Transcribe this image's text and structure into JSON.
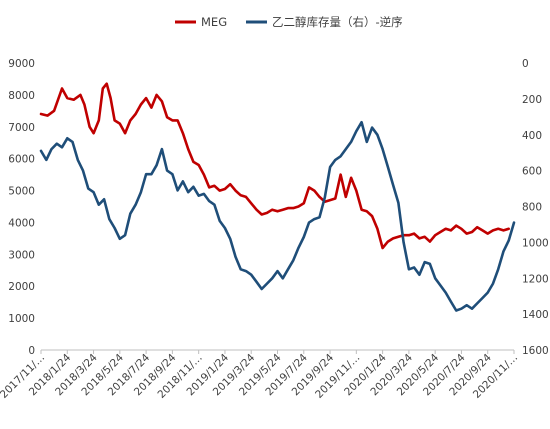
{
  "chart_data": {
    "type": "line",
    "title": "",
    "legend": {
      "placement": "top",
      "entries": [
        {
          "name": "MEG",
          "color": "#c00000"
        },
        {
          "name": "乙二醇库存量（右）-逆序",
          "color": "#1f4e79"
        }
      ]
    },
    "x_ticks": [
      "2017/11/…",
      "2018/1/24",
      "2018/3/24",
      "2018/5/24",
      "2018/7/24",
      "2018/9/24",
      "2018/11/…",
      "2019/1/24",
      "2019/3/24",
      "2019/5/24",
      "2019/7/24",
      "2019/9/24",
      "2019/11/…",
      "2020/1/24",
      "2020/3/24",
      "2020/5/24",
      "2020/7/24",
      "2020/9/24",
      "2020/11/…"
    ],
    "y_left": {
      "min": 0,
      "max": 9000,
      "step": 1000,
      "ticks": [
        "0",
        "1000",
        "2000",
        "3000",
        "4000",
        "5000",
        "6000",
        "7000",
        "8000",
        "9000"
      ]
    },
    "y_right": {
      "min": 0,
      "max": 1600,
      "step": 200,
      "reversed": true,
      "ticks": [
        "0",
        "200",
        "400",
        "600",
        "800",
        "1000",
        "1200",
        "1400",
        "1600"
      ]
    },
    "grid": false,
    "x_range": [
      0,
      36
    ],
    "series": [
      {
        "name": "MEG",
        "axis": "left",
        "color": "#c00000",
        "points": [
          [
            0,
            7400
          ],
          [
            0.5,
            7350
          ],
          [
            1,
            7500
          ],
          [
            1.6,
            8200
          ],
          [
            2,
            7900
          ],
          [
            2.5,
            7850
          ],
          [
            3,
            8000
          ],
          [
            3.3,
            7700
          ],
          [
            3.7,
            7000
          ],
          [
            4,
            6800
          ],
          [
            4.4,
            7200
          ],
          [
            4.7,
            8200
          ],
          [
            5,
            8350
          ],
          [
            5.3,
            7900
          ],
          [
            5.6,
            7200
          ],
          [
            6,
            7100
          ],
          [
            6.4,
            6800
          ],
          [
            6.8,
            7200
          ],
          [
            7.2,
            7400
          ],
          [
            7.6,
            7700
          ],
          [
            8,
            7900
          ],
          [
            8.4,
            7600
          ],
          [
            8.8,
            8000
          ],
          [
            9.2,
            7800
          ],
          [
            9.6,
            7300
          ],
          [
            10,
            7200
          ],
          [
            10.4,
            7200
          ],
          [
            10.8,
            6800
          ],
          [
            11.2,
            6300
          ],
          [
            11.6,
            5900
          ],
          [
            12,
            5800
          ],
          [
            12.4,
            5500
          ],
          [
            12.8,
            5100
          ],
          [
            13.2,
            5150
          ],
          [
            13.6,
            5000
          ],
          [
            14,
            5050
          ],
          [
            14.4,
            5200
          ],
          [
            14.8,
            5000
          ],
          [
            15.2,
            4850
          ],
          [
            15.6,
            4800
          ],
          [
            16,
            4600
          ],
          [
            16.4,
            4400
          ],
          [
            16.8,
            4250
          ],
          [
            17.2,
            4300
          ],
          [
            17.6,
            4400
          ],
          [
            18,
            4350
          ],
          [
            18.4,
            4400
          ],
          [
            18.8,
            4450
          ],
          [
            19.2,
            4450
          ],
          [
            19.6,
            4500
          ],
          [
            20,
            4600
          ],
          [
            20.4,
            5100
          ],
          [
            20.8,
            5000
          ],
          [
            21.2,
            4800
          ],
          [
            21.6,
            4650
          ],
          [
            22,
            4700
          ],
          [
            22.4,
            4750
          ],
          [
            22.8,
            5500
          ],
          [
            23.2,
            4800
          ],
          [
            23.6,
            5400
          ],
          [
            24,
            5000
          ],
          [
            24.4,
            4400
          ],
          [
            24.8,
            4350
          ],
          [
            25.2,
            4200
          ],
          [
            25.6,
            3800
          ],
          [
            26,
            3200
          ],
          [
            26.4,
            3400
          ],
          [
            26.8,
            3500
          ],
          [
            27.2,
            3550
          ],
          [
            27.6,
            3600
          ],
          [
            28,
            3600
          ],
          [
            28.4,
            3650
          ],
          [
            28.8,
            3500
          ],
          [
            29.2,
            3550
          ],
          [
            29.6,
            3400
          ],
          [
            30,
            3600
          ],
          [
            30.4,
            3700
          ],
          [
            30.8,
            3800
          ],
          [
            31.2,
            3750
          ],
          [
            31.6,
            3900
          ],
          [
            32,
            3800
          ],
          [
            32.4,
            3650
          ],
          [
            32.8,
            3700
          ],
          [
            33.2,
            3850
          ],
          [
            33.6,
            3750
          ],
          [
            34,
            3650
          ],
          [
            34.4,
            3750
          ],
          [
            34.8,
            3800
          ],
          [
            35.2,
            3750
          ],
          [
            35.6,
            3800
          ]
        ]
      },
      {
        "name": "乙二醇库存量（右）-逆序",
        "axis": "right",
        "color": "#1f4e79",
        "points": [
          [
            0,
            490
          ],
          [
            0.4,
            540
          ],
          [
            0.8,
            480
          ],
          [
            1.2,
            450
          ],
          [
            1.6,
            470
          ],
          [
            2,
            420
          ],
          [
            2.4,
            440
          ],
          [
            2.8,
            540
          ],
          [
            3.2,
            600
          ],
          [
            3.6,
            700
          ],
          [
            4,
            720
          ],
          [
            4.4,
            790
          ],
          [
            4.8,
            760
          ],
          [
            5.2,
            870
          ],
          [
            5.6,
            920
          ],
          [
            6,
            980
          ],
          [
            6.4,
            960
          ],
          [
            6.8,
            840
          ],
          [
            7.2,
            790
          ],
          [
            7.6,
            720
          ],
          [
            8,
            620
          ],
          [
            8.4,
            620
          ],
          [
            8.8,
            570
          ],
          [
            9.2,
            480
          ],
          [
            9.6,
            600
          ],
          [
            10,
            620
          ],
          [
            10.4,
            710
          ],
          [
            10.8,
            660
          ],
          [
            11.2,
            720
          ],
          [
            11.6,
            690
          ],
          [
            12,
            740
          ],
          [
            12.4,
            730
          ],
          [
            12.8,
            770
          ],
          [
            13.2,
            790
          ],
          [
            13.6,
            880
          ],
          [
            14,
            920
          ],
          [
            14.4,
            980
          ],
          [
            14.8,
            1080
          ],
          [
            15.2,
            1150
          ],
          [
            15.6,
            1160
          ],
          [
            16,
            1180
          ],
          [
            16.4,
            1220
          ],
          [
            16.8,
            1260
          ],
          [
            17.2,
            1230
          ],
          [
            17.6,
            1200
          ],
          [
            18,
            1160
          ],
          [
            18.4,
            1200
          ],
          [
            18.8,
            1150
          ],
          [
            19.2,
            1100
          ],
          [
            19.6,
            1030
          ],
          [
            20,
            970
          ],
          [
            20.4,
            890
          ],
          [
            20.8,
            870
          ],
          [
            21.2,
            860
          ],
          [
            21.6,
            750
          ],
          [
            22,
            580
          ],
          [
            22.4,
            540
          ],
          [
            22.8,
            520
          ],
          [
            23.2,
            480
          ],
          [
            23.6,
            440
          ],
          [
            24,
            380
          ],
          [
            24.4,
            330
          ],
          [
            24.8,
            440
          ],
          [
            25.2,
            360
          ],
          [
            25.6,
            400
          ],
          [
            26,
            480
          ],
          [
            26.4,
            580
          ],
          [
            26.8,
            680
          ],
          [
            27.2,
            780
          ],
          [
            27.6,
            1000
          ],
          [
            28,
            1150
          ],
          [
            28.4,
            1140
          ],
          [
            28.8,
            1180
          ],
          [
            29.2,
            1110
          ],
          [
            29.6,
            1120
          ],
          [
            30,
            1200
          ],
          [
            30.4,
            1240
          ],
          [
            30.8,
            1280
          ],
          [
            31.2,
            1330
          ],
          [
            31.6,
            1380
          ],
          [
            32,
            1370
          ],
          [
            32.4,
            1350
          ],
          [
            32.8,
            1370
          ],
          [
            33.2,
            1340
          ],
          [
            33.6,
            1310
          ],
          [
            34,
            1280
          ],
          [
            34.4,
            1230
          ],
          [
            34.8,
            1150
          ],
          [
            35.2,
            1050
          ],
          [
            35.6,
            990
          ],
          [
            36,
            890
          ]
        ]
      }
    ]
  }
}
